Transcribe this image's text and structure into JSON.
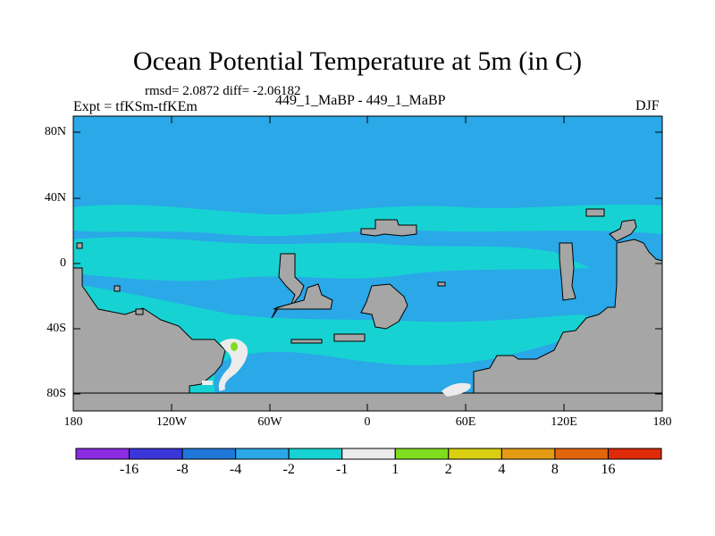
{
  "title": "Ocean Potential Temperature at 5m (in C)",
  "stats": "rmsd= 2.0872  diff= -2.06182",
  "experiment": "Expt = tfKSm-tfKEm",
  "comparison": "449_1_MaBP - 449_1_MaBP",
  "season": "DJF",
  "y_ticks": [
    "80N",
    "40N",
    "0",
    "40S",
    "80S"
  ],
  "x_ticks": [
    "180",
    "120W",
    "60W",
    "0",
    "60E",
    "120E",
    "180"
  ],
  "colorbar": {
    "colors": [
      "#8b2be2",
      "#3a35d8",
      "#1f77d7",
      "#2aa8e8",
      "#17d2d2",
      "#ececec",
      "#7fdc1e",
      "#d8d010",
      "#e59b14",
      "#e2650e",
      "#de2a08"
    ],
    "labels": [
      "-16",
      "-8",
      "-4",
      "-2",
      "-1",
      "1",
      "2",
      "4",
      "8",
      "16"
    ]
  },
  "map_colors": {
    "ocean_minus_2_to_4": "#2aa8e8",
    "ocean_minus_1_to_2": "#17d2d2",
    "near_zero": "#ececec",
    "positive": "#7fdc1e",
    "land": "#a6a6a6"
  }
}
